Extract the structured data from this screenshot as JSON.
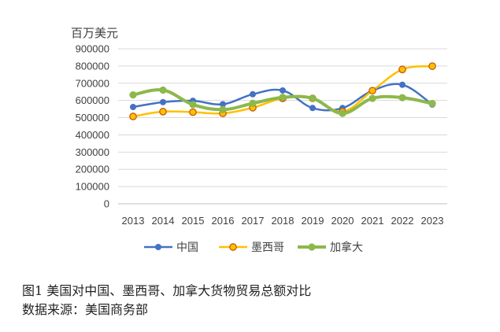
{
  "chart_data": {
    "type": "line",
    "unit_label": "百万美元",
    "categories": [
      "2013",
      "2014",
      "2015",
      "2016",
      "2017",
      "2018",
      "2019",
      "2020",
      "2021",
      "2022",
      "2023"
    ],
    "ylim": [
      0,
      900000
    ],
    "yticks": [
      "0",
      "100000",
      "200000",
      "300000",
      "400000",
      "500000",
      "600000",
      "700000",
      "800000",
      "900000"
    ],
    "grid": true,
    "legend_position": "bottom",
    "series": [
      {
        "name": "中国",
        "color": "#4472C4",
        "values": [
          562000,
          590000,
          598000,
          578000,
          636000,
          658000,
          556000,
          556000,
          657000,
          691000,
          576000
        ]
      },
      {
        "name": "墨西哥",
        "color": "#FFC000",
        "values": [
          507000,
          535000,
          532000,
          525000,
          558000,
          612000,
          612000,
          535000,
          657000,
          780000,
          799000
        ]
      },
      {
        "name": "加拿大",
        "color": "#8DB84A",
        "values": [
          632000,
          660000,
          576000,
          547000,
          583000,
          618000,
          612000,
          525000,
          612000,
          616000,
          582000
        ]
      }
    ]
  },
  "caption": {
    "line1": "图1  美国对中国、墨西哥、加拿大货物贸易总额对比",
    "line2": "数据来源：美国商务部"
  }
}
